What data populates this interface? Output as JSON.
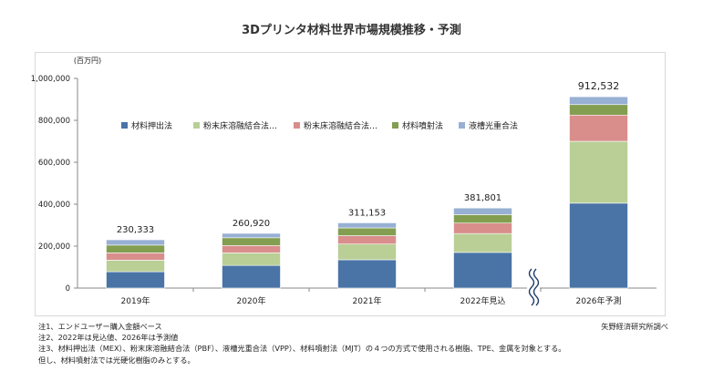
{
  "chart_data": {
    "type": "bar",
    "stacked": true,
    "title": "3Dプリンタ材料世界市場規模推移・予測",
    "unit_label": "(百万円)",
    "categories": [
      "2019年",
      "2020年",
      "2021年",
      "2022年見込",
      "2026年予測"
    ],
    "totals_labels": [
      "230,333",
      "260,920",
      "311,153",
      "381,801",
      "912,532"
    ],
    "totals": [
      230333,
      260920,
      311153,
      381801,
      912532
    ],
    "series": [
      {
        "name": "材料押出法",
        "color": "#4a74a6",
        "values": [
          78000,
          108000,
          135000,
          170000,
          405000
        ]
      },
      {
        "name": "粉末床溶融結合法…",
        "color": "#b9cf96",
        "values": [
          55000,
          60000,
          75000,
          90000,
          295000
        ]
      },
      {
        "name": "粉末床溶融結合法…",
        "color": "#d98e8c",
        "values": [
          35000,
          35000,
          40000,
          50000,
          125000
        ]
      },
      {
        "name": "材料噴射法",
        "color": "#839e50",
        "values": [
          37000,
          37000,
          37000,
          40000,
          50000
        ]
      },
      {
        "name": "液槽光重合法",
        "color": "#97b0d3",
        "values": [
          25333,
          20920,
          24153,
          31801,
          37532
        ]
      }
    ],
    "ylim": [
      0,
      1000000
    ],
    "yticks": [
      0,
      200000,
      400000,
      600000,
      800000,
      1000000
    ],
    "ytick_labels": [
      "0",
      "200,000",
      "400,000",
      "600,000",
      "800,000",
      "1,000,000"
    ],
    "grid": false,
    "legend_position": "top-center",
    "axis_break_before_last": true
  },
  "notes": [
    "注1、エンドユーザー購入金額ベース",
    "注2、2022年は見込値、2026年は予測値",
    "注3、材料押出法（MEX）、粉末床溶融結合法（PBF）、液槽光重合法（VPP）、材料噴射法（MJT）の４つの方式で使用される樹脂、TPE、金属を対象とする。",
    "但し、材料噴射法では光硬化樹脂のみとする。"
  ],
  "source": "矢野経済研究所調べ"
}
